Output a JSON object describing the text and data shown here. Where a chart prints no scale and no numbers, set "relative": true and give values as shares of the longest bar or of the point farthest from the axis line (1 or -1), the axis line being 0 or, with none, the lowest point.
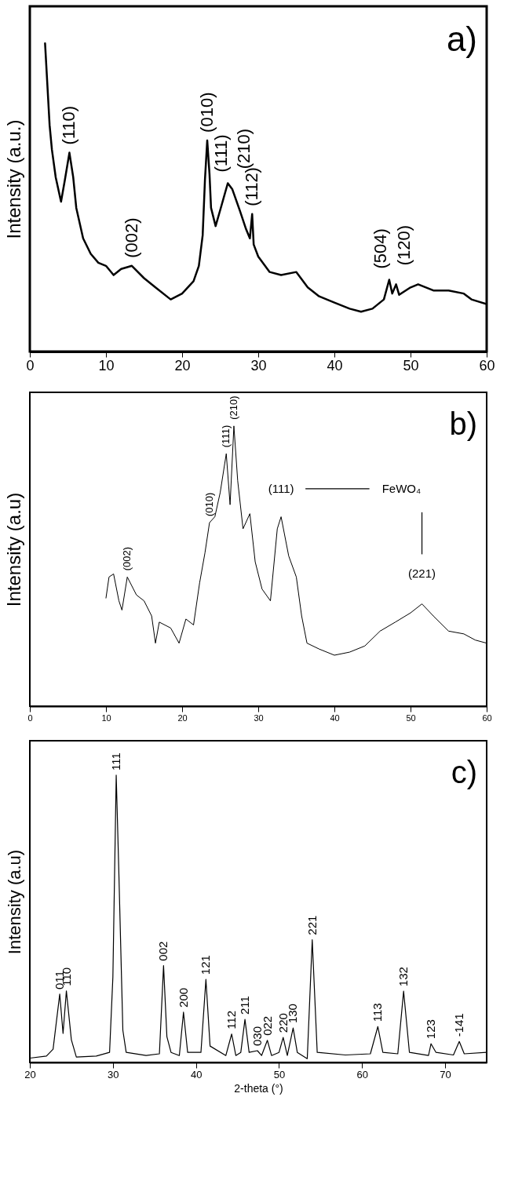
{
  "chart_data": [
    {
      "type": "line",
      "title": "a)",
      "ylabel": "Intensity (a.u.)",
      "relative": true,
      "xlim": [
        0,
        60
      ],
      "xticks": [
        0,
        10,
        20,
        30,
        40,
        50,
        60
      ],
      "x": [
        2.0,
        2.6,
        2.9,
        3.4,
        4.1,
        4.6,
        5.2,
        5.7,
        6.1,
        7.0,
        8.0,
        9.0,
        10.0,
        11.0,
        12.0,
        13.4,
        15.0,
        16.5,
        18.5,
        20,
        21.5,
        22.2,
        22.7,
        23.0,
        23.3,
        23.6,
        23.8,
        24.4,
        25.2,
        26.0,
        26.6,
        27.6,
        28.4,
        28.9,
        29.2,
        29.4,
        30.0,
        31.5,
        33,
        35,
        36.5,
        38,
        40,
        42,
        43.5,
        45,
        46.5,
        47.2,
        47.6,
        48.1,
        48.5,
        50,
        51,
        53,
        55,
        57,
        58,
        60
      ],
      "series": [
        {
          "color": "#000000",
          "values": [
            1.0,
            0.734,
            0.655,
            0.565,
            0.486,
            0.556,
            0.645,
            0.565,
            0.466,
            0.367,
            0.317,
            0.288,
            0.278,
            0.248,
            0.268,
            0.278,
            0.238,
            0.208,
            0.169,
            0.188,
            0.228,
            0.278,
            0.377,
            0.556,
            0.685,
            0.575,
            0.466,
            0.407,
            0.476,
            0.546,
            0.526,
            0.456,
            0.397,
            0.367,
            0.446,
            0.347,
            0.308,
            0.258,
            0.248,
            0.258,
            0.208,
            0.179,
            0.159,
            0.139,
            0.129,
            0.139,
            0.169,
            0.233,
            0.188,
            0.218,
            0.184,
            0.208,
            0.218,
            0.198,
            0.198,
            0.188,
            0.169,
            0.154
          ]
        }
      ],
      "annotations": [
        {
          "text": "(110)",
          "x": 5.2,
          "y": 0.645
        },
        {
          "text": "(002)",
          "x": 13.4,
          "y": 0.278
        },
        {
          "text": "(010)",
          "x": 23.3,
          "y": 0.685
        },
        {
          "text": "(111)",
          "x": 26.0,
          "y": 0.546
        },
        {
          "text": "(210)",
          "x": 26.6,
          "y": 0.526
        },
        {
          "text": "(112)",
          "x": 29.2,
          "y": 0.446
        },
        {
          "text": "(504)",
          "x": 47.2,
          "y": 0.233
        },
        {
          "text": "(120)",
          "x": 48.1,
          "y": 0.218
        }
      ]
    },
    {
      "type": "line",
      "title": "b)",
      "ylabel": "Intensity (a.u)",
      "relative": true,
      "xlim": [
        0,
        60
      ],
      "xticks": [
        0,
        10,
        20,
        30,
        40,
        50,
        60
      ],
      "x": [
        10,
        10.4,
        11,
        11.7,
        12.1,
        12.8,
        14,
        15,
        16,
        16.5,
        17,
        18.5,
        19.6,
        20.5,
        21.5,
        22.3,
        23,
        23.6,
        24.3,
        25,
        25.8,
        26.3,
        26.8,
        27.3,
        28,
        28.9,
        29.6,
        30.5,
        31.6,
        32.5,
        33,
        34,
        35,
        35.7,
        36.4,
        38,
        40,
        42,
        44,
        46,
        48,
        50,
        51.5,
        53,
        55,
        57,
        58.5,
        60
      ],
      "series": [
        {
          "color": "#000000",
          "values": [
            0.386,
            0.461,
            0.472,
            0.376,
            0.343,
            0.461,
            0.397,
            0.376,
            0.322,
            0.225,
            0.3,
            0.279,
            0.225,
            0.311,
            0.29,
            0.44,
            0.547,
            0.655,
            0.676,
            0.762,
            0.901,
            0.719,
            1.0,
            0.805,
            0.633,
            0.687,
            0.515,
            0.418,
            0.376,
            0.633,
            0.676,
            0.536,
            0.461,
            0.322,
            0.225,
            0.204,
            0.182,
            0.193,
            0.215,
            0.268,
            0.3,
            0.333,
            0.365,
            0.322,
            0.268,
            0.258,
            0.236,
            0.225
          ]
        }
      ],
      "annotations": [
        {
          "text": "(002)",
          "x": 12.8,
          "y": 0.461
        },
        {
          "text": "(010)",
          "x": 23.6,
          "y": 0.655
        },
        {
          "text": "(111)",
          "x": 25.8,
          "y": 0.901
        },
        {
          "text": "(210)",
          "x": 26.8,
          "y": 1.0
        },
        {
          "text": "(111)",
          "x": 33,
          "y": 0.676
        },
        "FeWO₄",
        {
          "text": "(221)",
          "x": 51.5,
          "y": 0.365
        }
      ]
    },
    {
      "type": "line",
      "title": "c)",
      "xlabel": "2-theta (°)",
      "ylabel": "Intensity (a.u)",
      "relative": true,
      "xlim": [
        20,
        75
      ],
      "xticks": [
        20,
        30,
        40,
        50,
        60,
        70
      ],
      "x": [
        20,
        22,
        22.8,
        23.6,
        24.0,
        24.4,
        25.0,
        25.6,
        28,
        29.6,
        30.0,
        30.4,
        30.7,
        31.2,
        31.6,
        34,
        35.6,
        36.1,
        36.5,
        37,
        38,
        38.5,
        39.0,
        40.6,
        41.2,
        41.7,
        43.6,
        44.3,
        44.8,
        45.4,
        45.9,
        46.4,
        47.4,
        47.9,
        48.6,
        49.1,
        50.0,
        50.5,
        51.0,
        51.7,
        52.2,
        53.4,
        54.0,
        54.6,
        58,
        61,
        61.9,
        62.5,
        64.3,
        65.0,
        65.7,
        68,
        68.3,
        68.9,
        71,
        71.7,
        72.3,
        75
      ],
      "series": [
        {
          "color": "#000000",
          "values": [
            0.015,
            0.022,
            0.046,
            0.238,
            0.101,
            0.249,
            0.079,
            0.019,
            0.022,
            0.035,
            0.298,
            1.0,
            0.681,
            0.112,
            0.035,
            0.024,
            0.03,
            0.337,
            0.09,
            0.035,
            0.024,
            0.175,
            0.035,
            0.035,
            0.289,
            0.057,
            0.024,
            0.099,
            0.024,
            0.035,
            0.15,
            0.035,
            0.041,
            0.024,
            0.077,
            0.024,
            0.035,
            0.087,
            0.024,
            0.12,
            0.035,
            0.013,
            0.427,
            0.035,
            0.026,
            0.03,
            0.125,
            0.035,
            0.03,
            0.248,
            0.035,
            0.024,
            0.065,
            0.035,
            0.026,
            0.073,
            0.03,
            0.035
          ]
        }
      ],
      "annotations": [
        {
          "text": "011",
          "x": 23.6,
          "y": 0.238
        },
        {
          "text": "110",
          "x": 24.4,
          "y": 0.249
        },
        {
          "text": "111",
          "x": 30.4,
          "y": 1.0
        },
        {
          "text": "002",
          "x": 36.1,
          "y": 0.337
        },
        {
          "text": "200",
          "x": 38.5,
          "y": 0.175
        },
        {
          "text": "121",
          "x": 41.2,
          "y": 0.289
        },
        {
          "text": "112",
          "x": 44.3,
          "y": 0.099
        },
        {
          "text": "211",
          "x": 45.9,
          "y": 0.15
        },
        {
          "text": "030",
          "x": 47.4,
          "y": 0.041
        },
        {
          "text": "022",
          "x": 48.6,
          "y": 0.077
        },
        {
          "text": "220",
          "x": 50.5,
          "y": 0.087
        },
        {
          "text": "130",
          "x": 51.7,
          "y": 0.12
        },
        {
          "text": "221",
          "x": 54.0,
          "y": 0.427
        },
        {
          "text": "113",
          "x": 61.9,
          "y": 0.125
        },
        {
          "text": "132",
          "x": 65.0,
          "y": 0.248
        },
        {
          "text": "123",
          "x": 68.3,
          "y": 0.065
        },
        {
          "text": "-141",
          "x": 71.7,
          "y": 0.073
        }
      ]
    }
  ]
}
